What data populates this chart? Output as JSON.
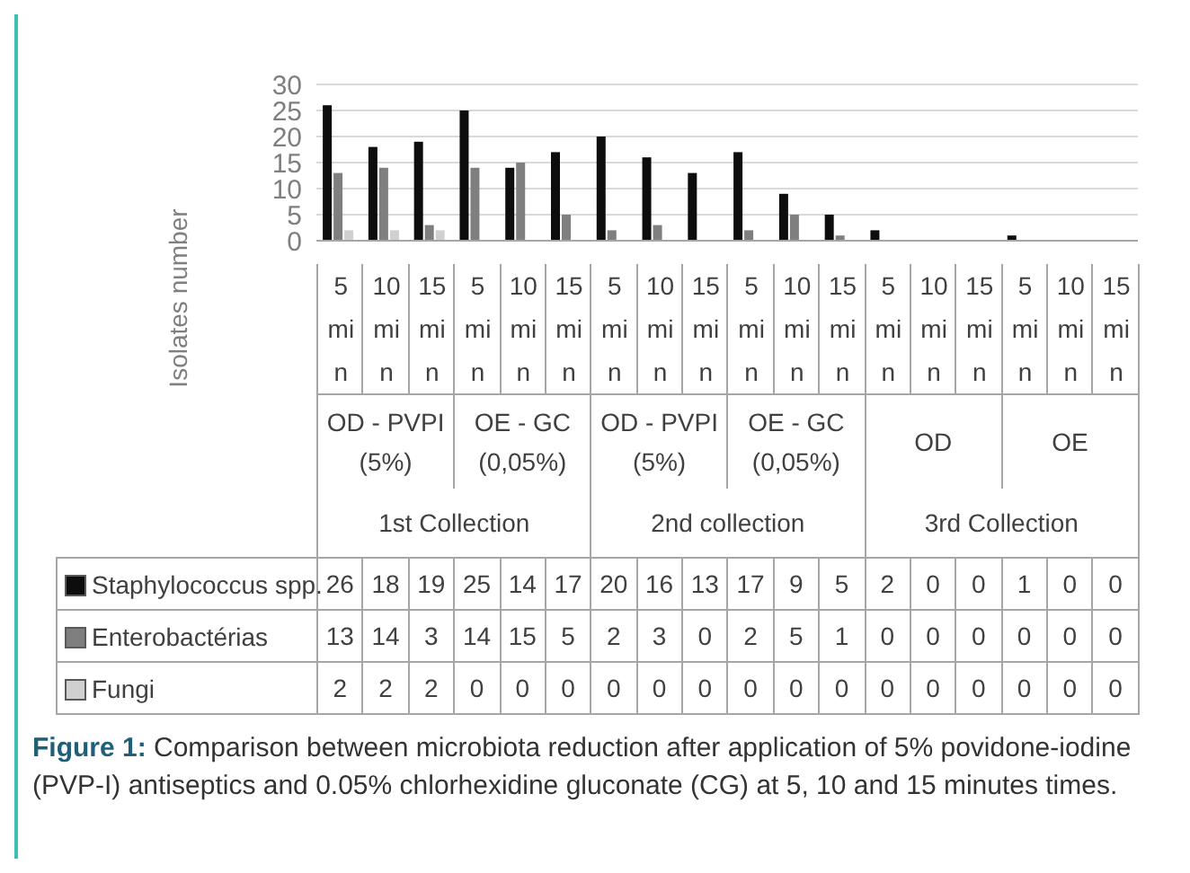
{
  "chart_data": {
    "type": "bar",
    "title": "Figure 1:  Comparison between microbiota reduction after application of 5% povidone-iodine (PVP-I) antiseptics and 0.05% chlorhexidine gluconate (CG) at 5, 10 and 15 minutes times.",
    "ylabel": "Isolates number",
    "categories": [
      "5 min",
      "10 min",
      "15 min",
      "5 min",
      "10 min",
      "15 min",
      "5 min",
      "10 min",
      "15 min",
      "5 min",
      "10 min",
      "15 min",
      "5 min",
      "10 min",
      "15 min",
      "5 min",
      "10 min",
      "15 min"
    ],
    "annotations": [
      "OD - PVPI (5%)",
      "OE - GC (0,05%)",
      "OD - PVPI (5%)",
      "OE - GC (0,05%)",
      "OD",
      "OE",
      "1st Collection",
      "2nd collection",
      "3rd Collection"
    ],
    "series": [
      {
        "name": "Staphylococcus spp.",
        "color": "#0d0d0d",
        "values": [
          26,
          18,
          19,
          25,
          14,
          17,
          20,
          16,
          13,
          17,
          9,
          5,
          2,
          0,
          0,
          1,
          0,
          0
        ]
      },
      {
        "name": "Enterobactérias",
        "color": "#7f7f7f",
        "values": [
          13,
          14,
          3,
          14,
          15,
          5,
          2,
          3,
          0,
          2,
          5,
          1,
          0,
          0,
          0,
          0,
          0,
          0
        ]
      },
      {
        "name": "Fungi",
        "color": "#d0d0d0",
        "values": [
          2,
          2,
          2,
          0,
          0,
          0,
          0,
          0,
          0,
          0,
          0,
          0,
          0,
          0,
          0,
          0,
          0,
          0
        ]
      }
    ],
    "ylim": [
      0,
      30
    ],
    "yticks": [
      0,
      5,
      10,
      15,
      20,
      25,
      30
    ],
    "grid": "y",
    "legend": "bottom left",
    "data_labels": true
  }
}
